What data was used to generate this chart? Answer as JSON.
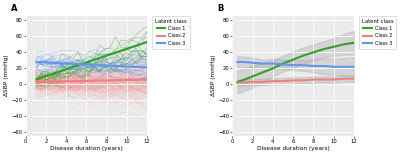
{
  "panel_a_label": "A",
  "panel_b_label": "B",
  "xlabel": "Disease duration (years)",
  "ylabel": "ΔSBP (mmHg)",
  "legend_title": "Latent class",
  "legend_labels": [
    "Class 1",
    "Class 2",
    "Class 3"
  ],
  "class_colors": [
    "#33a02c",
    "#f08080",
    "#6495ed"
  ],
  "xlim": [
    0,
    12
  ],
  "ylim": [
    -65,
    85
  ],
  "xticks": [
    0,
    2,
    4,
    6,
    8,
    10,
    12
  ],
  "yticks": [
    -60,
    -40,
    -20,
    0,
    20,
    40,
    60,
    80
  ],
  "bg_color": "#ebebeb",
  "grid_color": "white",
  "panel_b_class1_x": [
    0.5,
    1,
    2,
    3,
    4,
    5,
    6,
    7,
    8,
    9,
    10,
    11,
    12
  ],
  "panel_b_class1_y": [
    2,
    4,
    9,
    14,
    19,
    25,
    30,
    35,
    39,
    43,
    46,
    49,
    51
  ],
  "panel_b_class1_ci_low": [
    -12,
    -10,
    -5,
    2,
    9,
    15,
    20,
    25,
    29,
    33,
    35,
    36,
    36
  ],
  "panel_b_class1_ci_high": [
    16,
    18,
    23,
    26,
    29,
    35,
    40,
    45,
    49,
    53,
    57,
    62,
    66
  ],
  "panel_b_class2_x": [
    0.5,
    1,
    2,
    3,
    4,
    5,
    6,
    7,
    8,
    9,
    10,
    11,
    12
  ],
  "panel_b_class2_y": [
    1,
    1,
    2,
    2,
    3,
    3,
    4,
    4,
    5,
    5,
    5,
    6,
    6
  ],
  "panel_b_class2_ci_low": [
    -3,
    -3,
    -2,
    -2,
    -1,
    -1,
    0,
    0,
    1,
    1,
    1,
    2,
    2
  ],
  "panel_b_class2_ci_high": [
    5,
    5,
    6,
    6,
    7,
    7,
    8,
    8,
    9,
    9,
    9,
    10,
    10
  ],
  "panel_b_class3_x": [
    0.5,
    1,
    2,
    3,
    4,
    5,
    6,
    7,
    8,
    9,
    10,
    11,
    12
  ],
  "panel_b_class3_y": [
    27,
    27,
    26,
    25,
    25,
    24,
    23,
    23,
    22,
    22,
    21,
    21,
    21
  ],
  "panel_b_class3_ci_low": [
    20,
    20,
    20,
    20,
    19,
    18,
    17,
    16,
    14,
    12,
    11,
    10,
    9
  ],
  "panel_b_class3_ci_high": [
    34,
    34,
    32,
    30,
    31,
    30,
    29,
    30,
    30,
    32,
    31,
    32,
    33
  ],
  "class1_trend": [
    5,
    52
  ],
  "class2_trend": [
    2,
    5
  ],
  "class3_trend": [
    27,
    20
  ]
}
